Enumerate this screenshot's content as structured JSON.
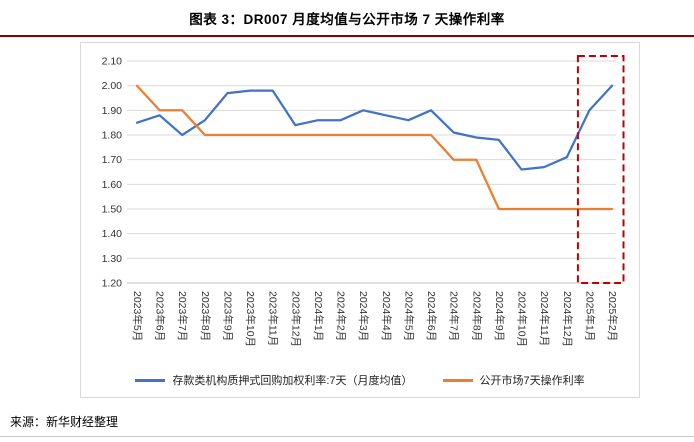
{
  "header": {
    "title": "图表 3：DR007 月度均值与公开市场 7 天操作利率"
  },
  "footer": {
    "source": "来源：新华财经整理"
  },
  "colors": {
    "title_rule": "#8B0000",
    "grid": "#D9D9D9",
    "axis_line": "#BFBFBF",
    "axis_text": "#333333",
    "chart_border": "#D9D9D9",
    "footer_rule": "#C9C9C9"
  },
  "chart_data": {
    "type": "line",
    "title": "图表 3：DR007 月度均值与公开市场 7 天操作利率",
    "xlabel": "",
    "ylabel": "",
    "ylim": [
      1.2,
      2.1
    ],
    "y_tick_labels": [
      "2.10",
      "2.00",
      "1.90",
      "1.80",
      "1.70",
      "1.60",
      "1.50",
      "1.40",
      "1.30",
      "1.20"
    ],
    "grid": true,
    "legend_position": "bottom",
    "categories": [
      "2023年5月",
      "2023年6月",
      "2023年7月",
      "2023年8月",
      "2023年9月",
      "2023年10月",
      "2023年11月",
      "2023年12月",
      "2024年1月",
      "2024年2月",
      "2024年3月",
      "2024年4月",
      "2024年5月",
      "2024年6月",
      "2024年7月",
      "2024年8月",
      "2024年9月",
      "2024年10月",
      "2024年11月",
      "2024年12月",
      "2025年1月",
      "2025年2月"
    ],
    "series": [
      {
        "name": "存款类机构质押式回购加权利率:7天（月度均值）",
        "color": "#4472C4",
        "values": [
          1.85,
          1.88,
          1.8,
          1.86,
          1.97,
          1.98,
          1.98,
          1.84,
          1.86,
          1.86,
          1.9,
          1.88,
          1.86,
          1.9,
          1.81,
          1.79,
          1.78,
          1.66,
          1.67,
          1.71,
          1.9,
          2.0
        ]
      },
      {
        "name": "公开市场7天操作利率",
        "color": "#ED7D31",
        "values": [
          2.0,
          1.9,
          1.9,
          1.8,
          1.8,
          1.8,
          1.8,
          1.8,
          1.8,
          1.8,
          1.8,
          1.8,
          1.8,
          1.8,
          1.7,
          1.7,
          1.5,
          1.5,
          1.5,
          1.5,
          1.5,
          1.5
        ]
      }
    ],
    "highlight_box": {
      "categories": [
        "2025年1月",
        "2025年2月"
      ],
      "color": "#C00000",
      "style": "dashed"
    }
  }
}
